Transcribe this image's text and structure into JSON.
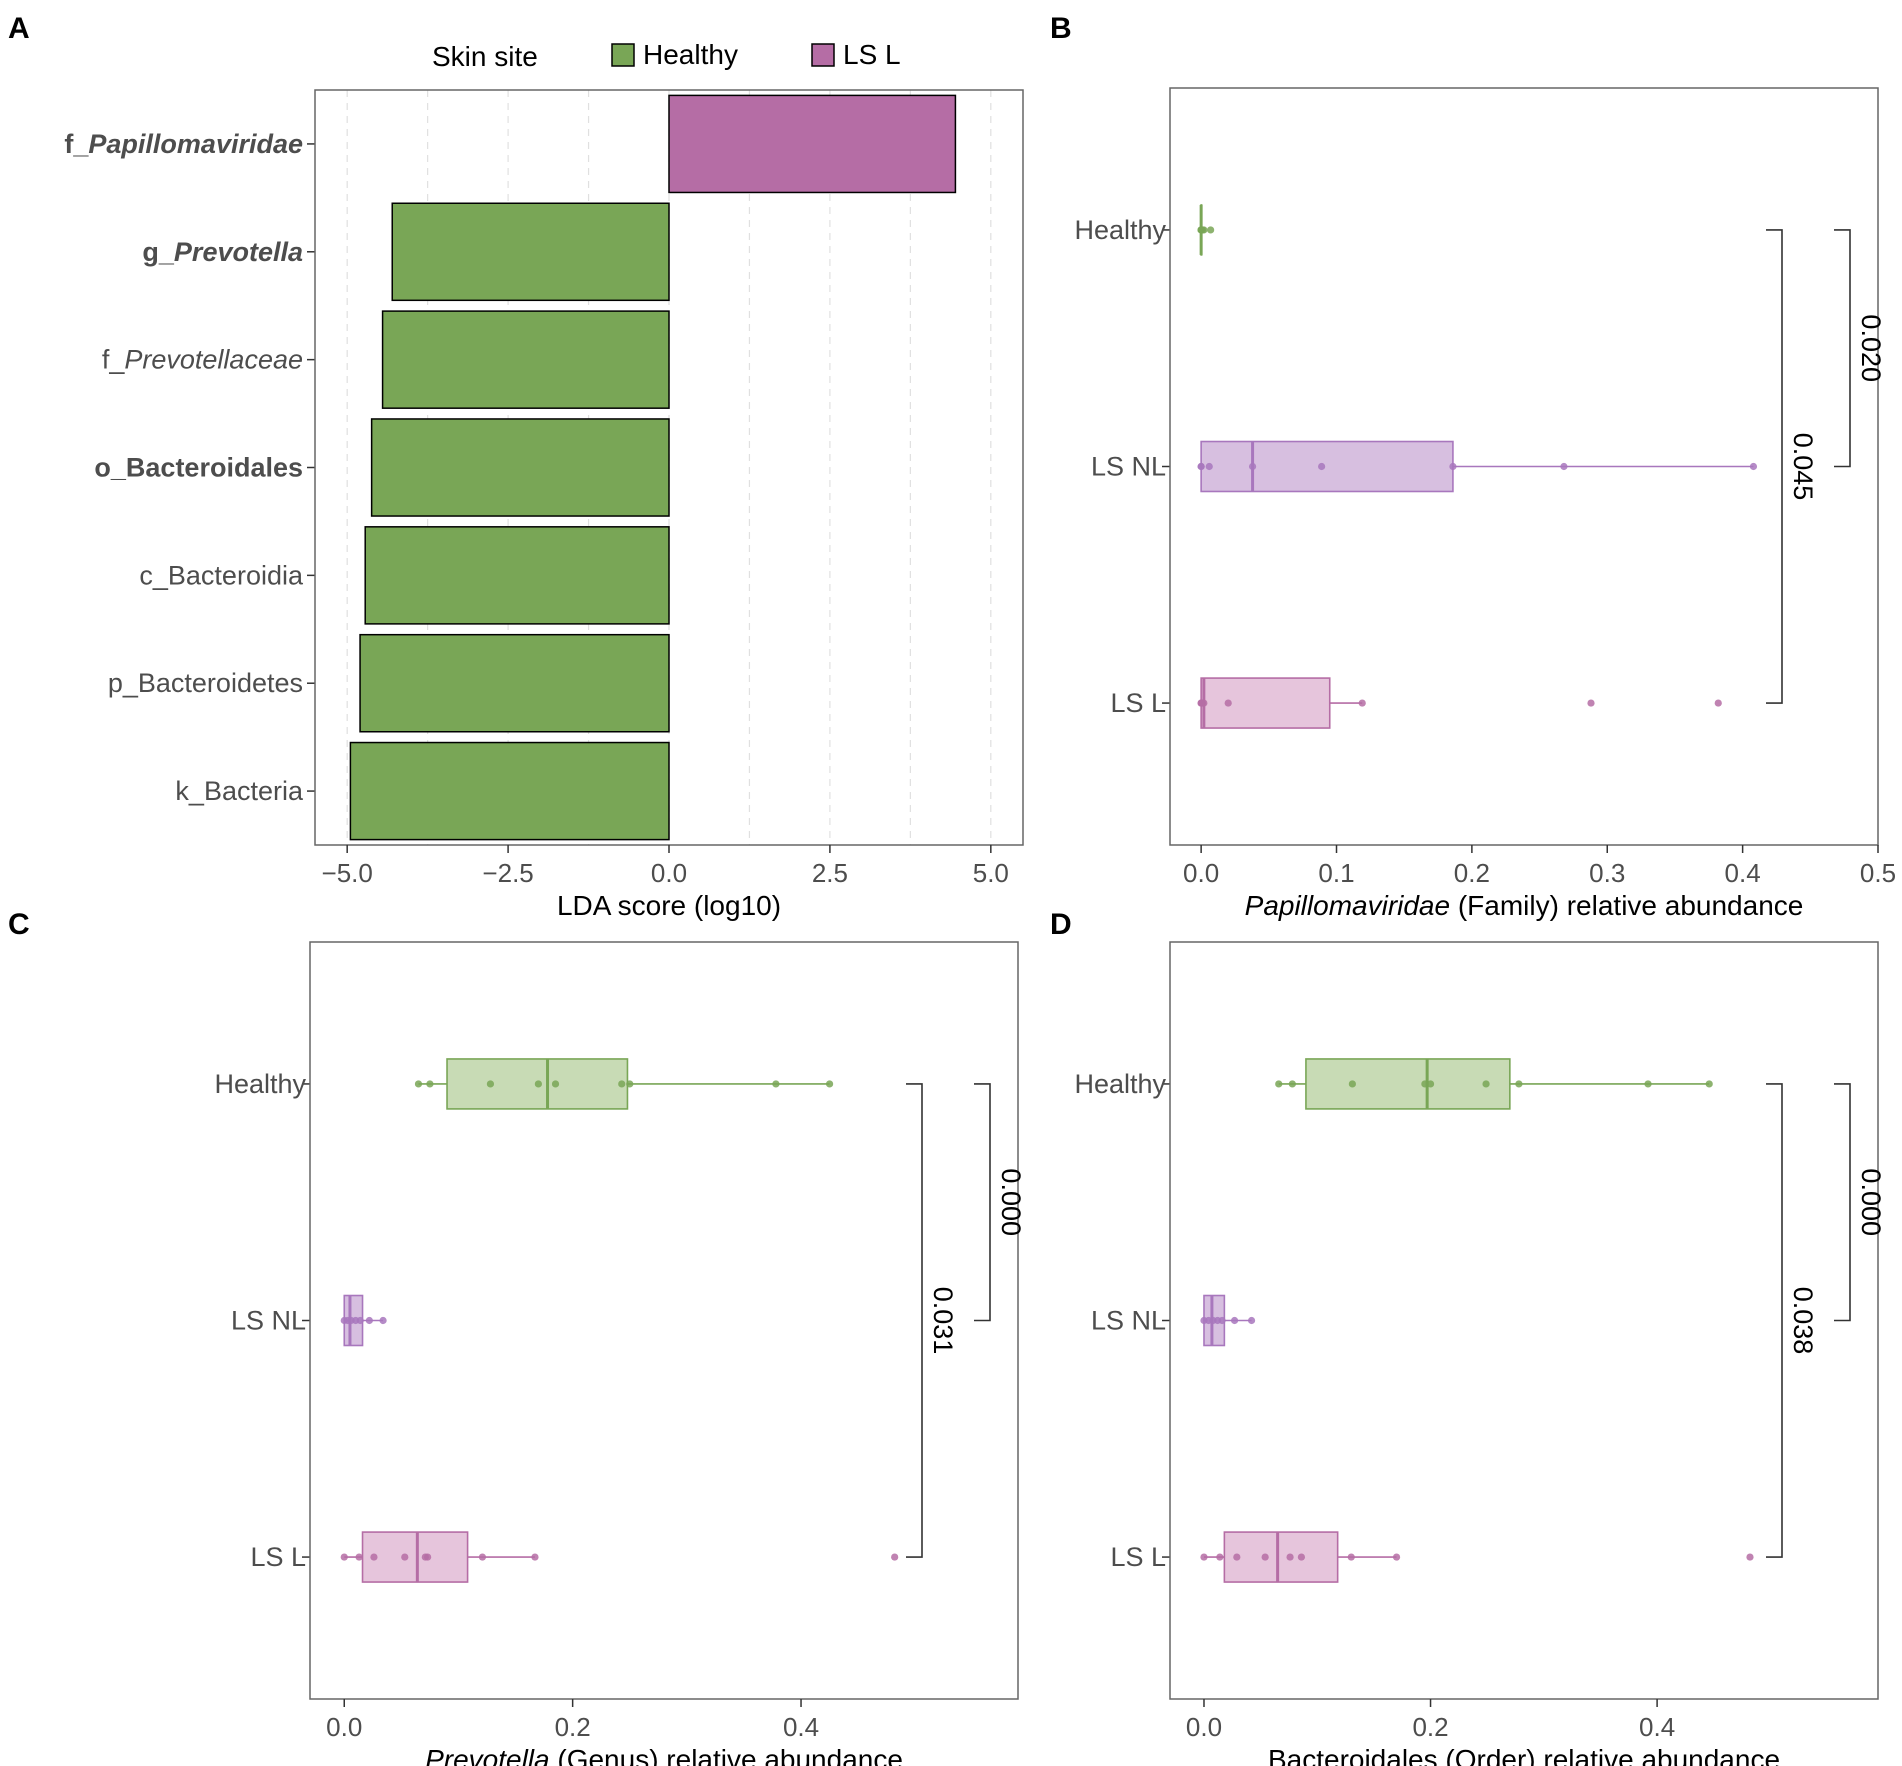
{
  "colors": {
    "healthy": "#79a656",
    "ls_l": "#b56da5",
    "healthy_box_fill": "#c8dbb5",
    "ls_nl_box_fill": "#d7bfe0",
    "ls_nl_line": "#a877bd",
    "ls_l_box_fill": "#e6c5dc",
    "ls_l_line": "#b56da5",
    "frame": "#666666",
    "grid": "#e0e0e0"
  },
  "panels": {
    "a": "A",
    "b": "B",
    "c": "C",
    "d": "D"
  },
  "legend": {
    "title": "Skin site",
    "healthy": "Healthy",
    "ls_l": "LS L"
  },
  "chart_data": [
    {
      "panel": "A",
      "type": "bar",
      "orientation": "horizontal",
      "xlabel": "LDA score (log10)",
      "xlim": [
        -5.5,
        5.5
      ],
      "xticks": [
        -5,
        -2.5,
        0,
        2.5,
        5
      ],
      "xtick_labels": [
        "−5.0",
        "−2.5",
        "0.0",
        "2.5",
        "5.0"
      ],
      "grid": "vertical dashed",
      "legend_position": "top",
      "categories": [
        {
          "pre": "f_",
          "name": "Papillomaviridae",
          "italic": true,
          "bold": true
        },
        {
          "pre": "g_",
          "name": "Prevotella",
          "italic": true,
          "bold": true
        },
        {
          "pre": "f_",
          "name": "Prevotellaceae",
          "italic": true,
          "bold": false
        },
        {
          "pre": "",
          "name": "o_Bacteroidales",
          "italic": false,
          "bold": true
        },
        {
          "pre": "",
          "name": "c_Bacteroidia",
          "italic": false,
          "bold": false
        },
        {
          "pre": "",
          "name": "p_Bacteroidetes",
          "italic": false,
          "bold": false
        },
        {
          "pre": "",
          "name": "k_Bacteria",
          "italic": false,
          "bold": false
        }
      ],
      "values": [
        4.45,
        -4.3,
        -4.45,
        -4.62,
        -4.72,
        -4.8,
        -4.95
      ],
      "groups": [
        "LS L",
        "Healthy",
        "Healthy",
        "Healthy",
        "Healthy",
        "Healthy",
        "Healthy"
      ]
    },
    {
      "panel": "B",
      "type": "boxplot",
      "orientation": "horizontal",
      "xlabel_italic": "Papillomaviridae",
      "xlabel_rest": " (Family) relative abundance",
      "xlim": [
        -0.023,
        0.5
      ],
      "xticks": [
        0,
        0.1,
        0.2,
        0.3,
        0.4,
        0.5
      ],
      "xtick_labels": [
        "0.0",
        "0.1",
        "0.2",
        "0.3",
        "0.4",
        "0.5"
      ],
      "groups": [
        {
          "name": "Healthy",
          "style": "healthy",
          "min": 0,
          "q1": 0,
          "median": 0,
          "q3": 0,
          "max": 0,
          "points": [
            0,
            0,
            0,
            0.001,
            0.002,
            0.007
          ]
        },
        {
          "name": "LS NL",
          "style": "ls_nl",
          "min": 0,
          "q1": 0,
          "median": 0.038,
          "q3": 0.186,
          "max": 0.408,
          "points": [
            0,
            0,
            0.006,
            0.038,
            0.089,
            0.186,
            0.268,
            0.408
          ]
        },
        {
          "name": "LS L",
          "style": "ls_l",
          "min": 0,
          "q1": 0,
          "median": 0.002,
          "q3": 0.095,
          "max": 0.119,
          "points": [
            0,
            0,
            0.001,
            0.002,
            0.02,
            0.119,
            0.288,
            0.382
          ]
        }
      ],
      "comparisons": [
        {
          "from": "Healthy",
          "to": "LS NL",
          "p": "0.020",
          "level": 2
        },
        {
          "from": "Healthy",
          "to": "LS L",
          "p": "0.045",
          "level": 1
        }
      ]
    },
    {
      "panel": "C",
      "type": "boxplot",
      "orientation": "horizontal",
      "xlabel_italic": "Prevotella",
      "xlabel_rest": " (Genus) relative abundance",
      "xlim": [
        -0.03,
        0.59
      ],
      "xticks": [
        0,
        0.2,
        0.4
      ],
      "xtick_labels": [
        "0.0",
        "0.2",
        "0.4"
      ],
      "groups": [
        {
          "name": "Healthy",
          "style": "healthy",
          "min": 0.065,
          "q1": 0.09,
          "median": 0.178,
          "q3": 0.248,
          "max": 0.425,
          "points": [
            0.065,
            0.075,
            0.128,
            0.17,
            0.185,
            0.243,
            0.25,
            0.378,
            0.425
          ]
        },
        {
          "name": "LS NL",
          "style": "ls_nl",
          "min": 0,
          "q1": 0,
          "median": 0.005,
          "q3": 0.016,
          "max": 0.034,
          "points": [
            0,
            0.003,
            0.006,
            0.01,
            0.014,
            0.022,
            0.034
          ]
        },
        {
          "name": "LS L",
          "style": "ls_l",
          "min": 0,
          "q1": 0.016,
          "median": 0.064,
          "q3": 0.108,
          "max": 0.167,
          "points": [
            0,
            0.013,
            0.026,
            0.053,
            0.071,
            0.073,
            0.121,
            0.167,
            0.482
          ]
        }
      ],
      "comparisons": [
        {
          "from": "Healthy",
          "to": "LS NL",
          "p": "0.000",
          "level": 2
        },
        {
          "from": "Healthy",
          "to": "LS L",
          "p": "0.031",
          "level": 1
        }
      ]
    },
    {
      "panel": "D",
      "type": "boxplot",
      "orientation": "horizontal",
      "xlabel_italic": "",
      "xlabel_rest": "Bacteroidales (Order) relative abundance",
      "xlim": [
        -0.03,
        0.595
      ],
      "xticks": [
        0,
        0.2,
        0.4
      ],
      "xtick_labels": [
        "0.0",
        "0.2",
        "0.4"
      ],
      "groups": [
        {
          "name": "Healthy",
          "style": "healthy",
          "min": 0.066,
          "q1": 0.09,
          "median": 0.197,
          "q3": 0.27,
          "max": 0.446,
          "points": [
            0.066,
            0.078,
            0.131,
            0.195,
            0.2,
            0.249,
            0.278,
            0.392,
            0.446
          ]
        },
        {
          "name": "LS NL",
          "style": "ls_nl",
          "min": 0,
          "q1": 0,
          "median": 0.007,
          "q3": 0.018,
          "max": 0.042,
          "points": [
            0,
            0.004,
            0.008,
            0.012,
            0.016,
            0.027,
            0.042
          ]
        },
        {
          "name": "LS L",
          "style": "ls_l",
          "min": 0,
          "q1": 0.018,
          "median": 0.065,
          "q3": 0.118,
          "max": 0.17,
          "points": [
            0,
            0.014,
            0.029,
            0.054,
            0.076,
            0.086,
            0.13,
            0.17,
            0.482
          ]
        }
      ],
      "comparisons": [
        {
          "from": "Healthy",
          "to": "LS NL",
          "p": "0.000",
          "level": 2
        },
        {
          "from": "Healthy",
          "to": "LS L",
          "p": "0.038",
          "level": 1
        }
      ]
    }
  ]
}
